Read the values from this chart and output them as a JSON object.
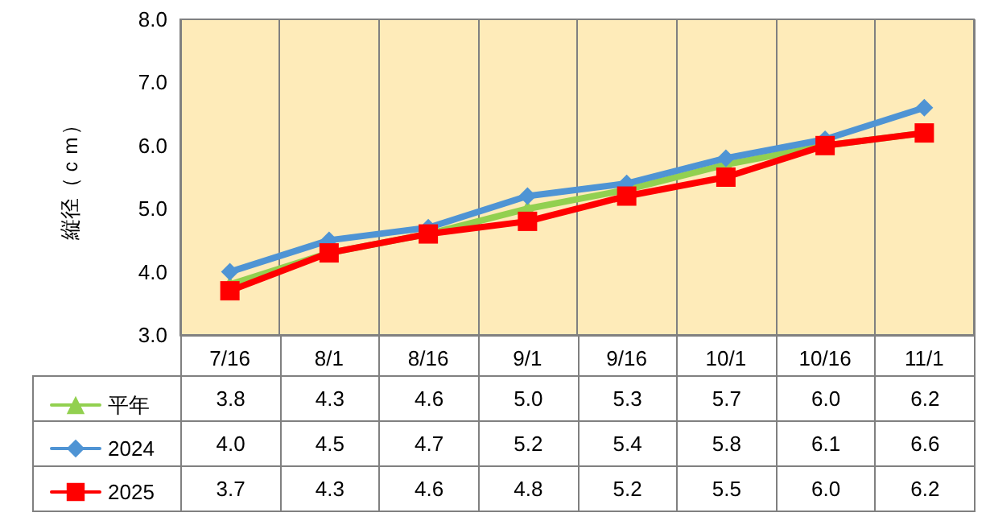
{
  "chart_data": {
    "type": "line",
    "ylabel": "縦径（ｃｍ）",
    "categories": [
      "7/16",
      "8/1",
      "8/16",
      "9/1",
      "9/16",
      "10/1",
      "10/16",
      "11/1"
    ],
    "series": [
      {
        "name": "平年",
        "color": "#92d050",
        "marker": "triangle",
        "values": [
          3.8,
          4.3,
          4.6,
          5.0,
          5.3,
          5.7,
          6.0,
          6.2
        ],
        "value_labels": [
          "3.8",
          "4.3",
          "4.6",
          "5.0",
          "5.3",
          "5.7",
          "6.0",
          "6.2"
        ]
      },
      {
        "name": "2024",
        "color": "#4f94d4",
        "marker": "diamond",
        "values": [
          4.0,
          4.5,
          4.7,
          5.2,
          5.4,
          5.8,
          6.1,
          6.6
        ],
        "value_labels": [
          "4.0",
          "4.5",
          "4.7",
          "5.2",
          "5.4",
          "5.8",
          "6.1",
          "6.6"
        ]
      },
      {
        "name": "2025",
        "color": "#ff0000",
        "marker": "square",
        "values": [
          3.7,
          4.3,
          4.6,
          4.8,
          5.2,
          5.5,
          6.0,
          6.2
        ],
        "value_labels": [
          "3.7",
          "4.3",
          "4.6",
          "4.8",
          "5.2",
          "5.5",
          "6.0",
          "6.2"
        ]
      }
    ],
    "ylim": [
      3,
      8
    ],
    "yticks": [
      {
        "value": 3,
        "label": "3.0"
      },
      {
        "value": 4,
        "label": "4.0"
      },
      {
        "value": 5,
        "label": "5.0"
      },
      {
        "value": 6,
        "label": "6.0"
      },
      {
        "value": 7,
        "label": "7.0"
      },
      {
        "value": 8,
        "label": "8.0"
      }
    ],
    "grid": "x",
    "legend": "bottom",
    "line_style": "solid"
  }
}
